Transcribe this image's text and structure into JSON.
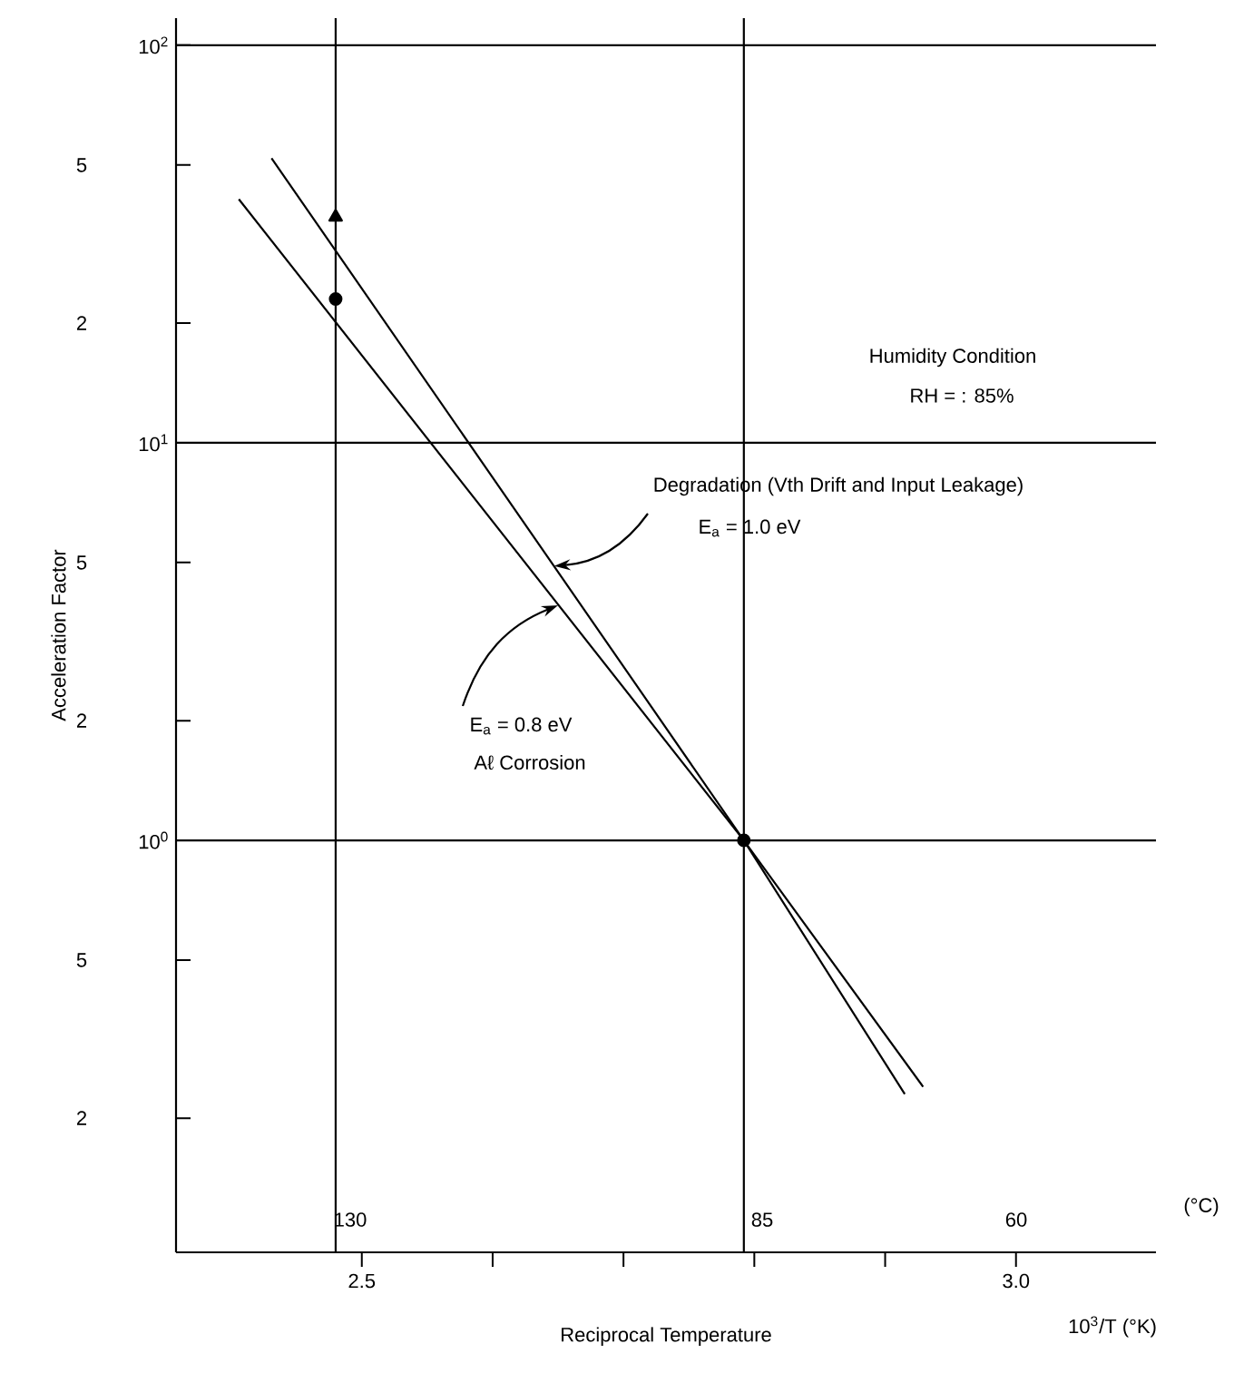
{
  "chart_data": {
    "type": "line",
    "xlabel": "Reciprocal Temperature",
    "ylabel": "Acceleration Factor",
    "log": "y",
    "line_style": "solid",
    "xlim": [
      2.358,
      3.107
    ],
    "xticks": [
      2.5,
      {
        "value": 2.6,
        "label": null
      },
      {
        "value": 2.7,
        "label": null
      },
      {
        "value": 2.8,
        "label": null
      },
      {
        "value": 2.9,
        "label": null
      },
      {
        "value": 3.0,
        "label": "3.0"
      }
    ],
    "ylim": [
      0.092,
      117
    ],
    "yticks": [
      {
        "value": 0.2,
        "label": null
      },
      {
        "value": 0.5,
        "label": null
      },
      {
        "value": 1,
        "label": "10$^{0}$"
      },
      {
        "value": 2,
        "label": null
      },
      {
        "value": 5,
        "label": null
      },
      {
        "value": 10,
        "label": "10$^{1}$"
      },
      {
        "value": 20,
        "label": null
      },
      {
        "value": 50,
        "label": null
      },
      {
        "value": 100,
        "label": "10$^{2}$"
      }
    ],
    "series": [
      {
        "color": "#000000",
        "marker": "none",
        "x": [
          2.431,
          2.792,
          2.929
        ],
        "values": [
          52,
          1,
          0.24
        ]
      },
      {
        "color": "#000000",
        "marker": "none",
        "x": [
          2.406,
          2.792,
          2.915
        ],
        "values": [
          41,
          1,
          0.23
        ]
      },
      {
        "type": "scatter",
        "color": "#000000",
        "marker": "triangle",
        "x": [
          2.48
        ],
        "values": [
          37
        ]
      },
      {
        "type": "scatter",
        "color": "#000000",
        "marker": "circle",
        "x": [
          2.48,
          2.792
        ],
        "values": [
          23,
          1
        ]
      }
    ],
    "ref_lines": [
      {
        "axis": "y",
        "value": 1,
        "color": "#000000"
      },
      {
        "axis": "y",
        "value": 10,
        "color": "#000000"
      },
      {
        "axis": "y",
        "value": 100,
        "color": "#000000"
      },
      {
        "axis": "x",
        "value": 2.48,
        "color": "#000000"
      },
      {
        "axis": "x",
        "value": 2.792,
        "color": "#000000"
      }
    ],
    "annotations": [
      {
        "text": "Degradation (Vth Drift and Input Leakage)",
        "x": 2.647,
        "y": 4.9
      },
      "E$_{a}$ = 1.0 eV",
      {
        "text": "E$_{a}$ = 0.8 eV",
        "x": 2.65,
        "y": 3.9
      },
      "Aℓ Corrosion",
      "Humidity Condition",
      "RH = : 85%",
      "10$^{3}$/T (°K)",
      "130",
      "85",
      "60",
      "(°C)",
      "5",
      "2",
      "5",
      "2",
      "5",
      "2"
    ]
  }
}
